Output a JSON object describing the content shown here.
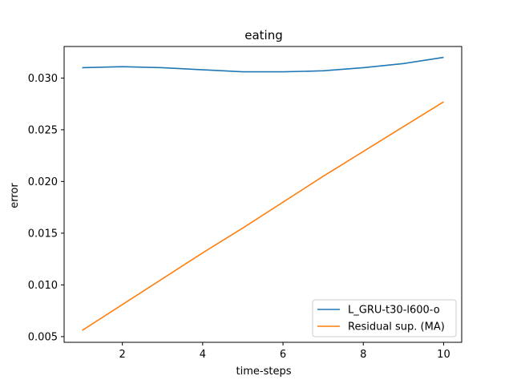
{
  "chart_data": {
    "type": "line",
    "title": "eating",
    "xlabel": "time-steps",
    "ylabel": "error",
    "x": [
      1,
      2,
      3,
      4,
      5,
      6,
      7,
      8,
      9,
      10
    ],
    "xlim": [
      0.55,
      10.45
    ],
    "ylim": [
      0.00445,
      0.03305
    ],
    "xticks": [
      2,
      4,
      6,
      8,
      10
    ],
    "xtick_labels": [
      "2",
      "4",
      "6",
      "8",
      "10"
    ],
    "yticks": [
      0.005,
      0.01,
      0.015,
      0.02,
      0.025,
      0.03
    ],
    "ytick_labels": [
      "0.005",
      "0.010",
      "0.015",
      "0.020",
      "0.025",
      "0.030"
    ],
    "grid": false,
    "legend_position": "bottom-right",
    "series": [
      {
        "name": "L_GRU-t30-l600-o",
        "color": "#1f77b4",
        "values": [
          0.031,
          0.0311,
          0.031,
          0.0308,
          0.0306,
          0.0306,
          0.0307,
          0.031,
          0.0314,
          0.032
        ]
      },
      {
        "name": "Residual sup. (MA)",
        "color": "#ff7f0e",
        "values": [
          0.0056,
          0.0081,
          0.0106,
          0.0131,
          0.0155,
          0.018,
          0.0205,
          0.0229,
          0.0253,
          0.0277
        ]
      }
    ]
  }
}
